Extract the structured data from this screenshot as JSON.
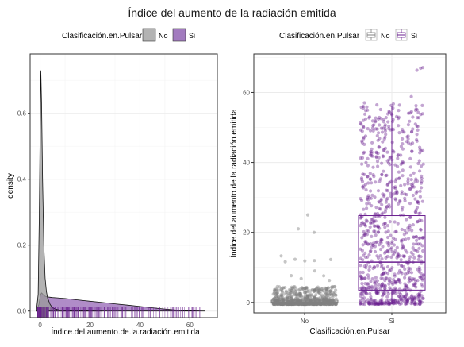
{
  "title": "Índice del aumento de la radiación emitida",
  "colors": {
    "no": "#808080",
    "si": "#6a1f8f",
    "grid": "#ebebeb",
    "axis": "#333333"
  },
  "chart_data": [
    {
      "type": "area",
      "subtype": "density-with-rug",
      "xlabel": "Índice.del.aumento.de.la.radiación.emitida",
      "ylabel": "density",
      "xlim": [
        -4,
        71
      ],
      "ylim": [
        -0.02,
        0.78
      ],
      "xticks": [
        0,
        20,
        40,
        60
      ],
      "yticks": [
        0.0,
        0.2,
        0.4,
        0.6
      ],
      "grid": true,
      "legend": {
        "title": "Clasificación.en.Pulsar",
        "position": "top",
        "entries": [
          "No",
          "Si"
        ]
      },
      "series": [
        {
          "name": "No",
          "x": [
            -1.5,
            -0.8,
            -0.3,
            0,
            0.3,
            0.6,
            1.0,
            1.5,
            2.0,
            2.5,
            3.0,
            4.0,
            5.0,
            6.0,
            8.0,
            10.0,
            15.0,
            20.0,
            25.0
          ],
          "y": [
            0.0,
            0.05,
            0.3,
            0.55,
            0.73,
            0.62,
            0.4,
            0.2,
            0.1,
            0.06,
            0.04,
            0.02,
            0.01,
            0.006,
            0.003,
            0.002,
            0.001,
            0.0005,
            0.0
          ]
        },
        {
          "name": "Si",
          "x": [
            -1.5,
            -0.5,
            0.2,
            0.6,
            1.0,
            1.5,
            2.0,
            2.5,
            3.0,
            4.0,
            5.0,
            7.0,
            10.0,
            15.0,
            20.0,
            25.0,
            30.0,
            35.0,
            40.0,
            45.0,
            50.0,
            55.0,
            60.0,
            66.0
          ],
          "y": [
            0.0,
            0.02,
            0.05,
            0.055,
            0.052,
            0.047,
            0.045,
            0.044,
            0.043,
            0.042,
            0.041,
            0.04,
            0.038,
            0.034,
            0.03,
            0.026,
            0.022,
            0.018,
            0.014,
            0.01,
            0.006,
            0.003,
            0.001,
            0.0
          ]
        }
      ]
    },
    {
      "type": "scatter",
      "subtype": "boxplot-with-jitter",
      "xlabel": "Clasificación.en.Pulsar",
      "ylabel": "Índice.del.aumento.de.la.radiación.emitida",
      "categories": [
        "No",
        "Si"
      ],
      "ylim": [
        -3,
        71
      ],
      "yticks": [
        0,
        20,
        40,
        60
      ],
      "grid": true,
      "legend": {
        "title": "Clasificación.en.Pulsar",
        "position": "top",
        "entries": [
          "No",
          "Si"
        ]
      },
      "boxes": [
        {
          "name": "No",
          "min": -0.5,
          "q1": -0.2,
          "median": 0.1,
          "q3": 0.6,
          "max": 2.0,
          "outlier_max": 25
        },
        {
          "name": "Si",
          "min": -0.5,
          "q1": 3.5,
          "median": 11.5,
          "q3": 24.8,
          "max": 56,
          "outlier_max": 68
        }
      ]
    }
  ]
}
